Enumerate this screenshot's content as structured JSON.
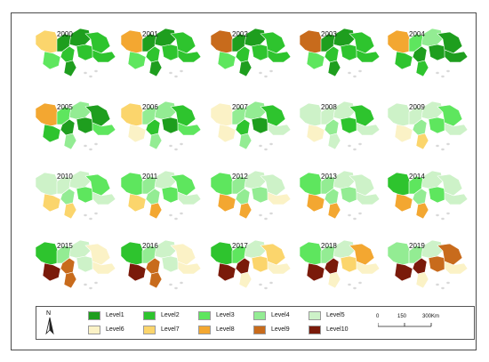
{
  "years": [
    "2000",
    "2001",
    "2002",
    "2003",
    "2004",
    "2005",
    "2006",
    "2007",
    "2008",
    "2009",
    "2010",
    "2011",
    "2012",
    "2013",
    "2014",
    "2015",
    "2016",
    "2017",
    "2018",
    "2019"
  ],
  "levels": [
    {
      "label": "Level1",
      "color": "#1e9e1e"
    },
    {
      "label": "Level2",
      "color": "#2ec42e"
    },
    {
      "label": "Level3",
      "color": "#5ee65e"
    },
    {
      "label": "Level4",
      "color": "#93ec93"
    },
    {
      "label": "Level5",
      "color": "#cdf2c8"
    },
    {
      "label": "Level6",
      "color": "#fbf2c6"
    },
    {
      "label": "Level7",
      "color": "#fbd56c"
    },
    {
      "label": "Level8",
      "color": "#f3a731"
    },
    {
      "label": "Level9",
      "color": "#c86b1c"
    },
    {
      "label": "Level10",
      "color": "#7a1a0a"
    }
  ],
  "region_levels": [
    [
      7,
      1,
      1,
      2,
      2,
      2,
      3,
      1,
      2
    ],
    [
      8,
      1,
      1,
      2,
      2,
      2,
      3,
      1,
      2
    ],
    [
      9,
      1,
      1,
      2,
      2,
      2,
      3,
      1,
      2
    ],
    [
      9,
      1,
      1,
      2,
      2,
      2,
      3,
      1,
      2
    ],
    [
      8,
      3,
      4,
      1,
      1,
      1,
      2,
      2,
      1
    ],
    [
      8,
      3,
      4,
      1,
      1,
      1,
      2,
      4,
      3
    ],
    [
      7,
      4,
      4,
      2,
      1,
      2,
      6,
      4,
      3
    ],
    [
      6,
      4,
      4,
      2,
      1,
      2,
      6,
      4,
      5
    ],
    [
      5,
      5,
      5,
      4,
      2,
      2,
      6,
      5,
      5
    ],
    [
      5,
      5,
      5,
      4,
      3,
      3,
      6,
      7,
      5
    ],
    [
      5,
      5,
      5,
      4,
      3,
      3,
      7,
      7,
      5
    ],
    [
      3,
      4,
      5,
      4,
      3,
      3,
      7,
      8,
      5
    ],
    [
      3,
      4,
      5,
      4,
      4,
      5,
      8,
      8,
      6
    ],
    [
      3,
      4,
      5,
      4,
      4,
      5,
      8,
      8,
      5
    ],
    [
      2,
      3,
      5,
      4,
      3,
      5,
      8,
      8,
      5
    ],
    [
      2,
      4,
      5,
      9,
      5,
      6,
      10,
      9,
      6
    ],
    [
      2,
      4,
      5,
      9,
      5,
      6,
      10,
      9,
      6
    ],
    [
      2,
      3,
      5,
      10,
      7,
      7,
      10,
      6,
      6
    ],
    [
      3,
      4,
      5,
      10,
      7,
      8,
      10,
      6,
      6
    ],
    [
      4,
      4,
      5,
      10,
      9,
      9,
      10,
      6,
      6
    ]
  ],
  "legend": {
    "north": "N",
    "scale": [
      "0",
      "150",
      "300Km"
    ]
  }
}
